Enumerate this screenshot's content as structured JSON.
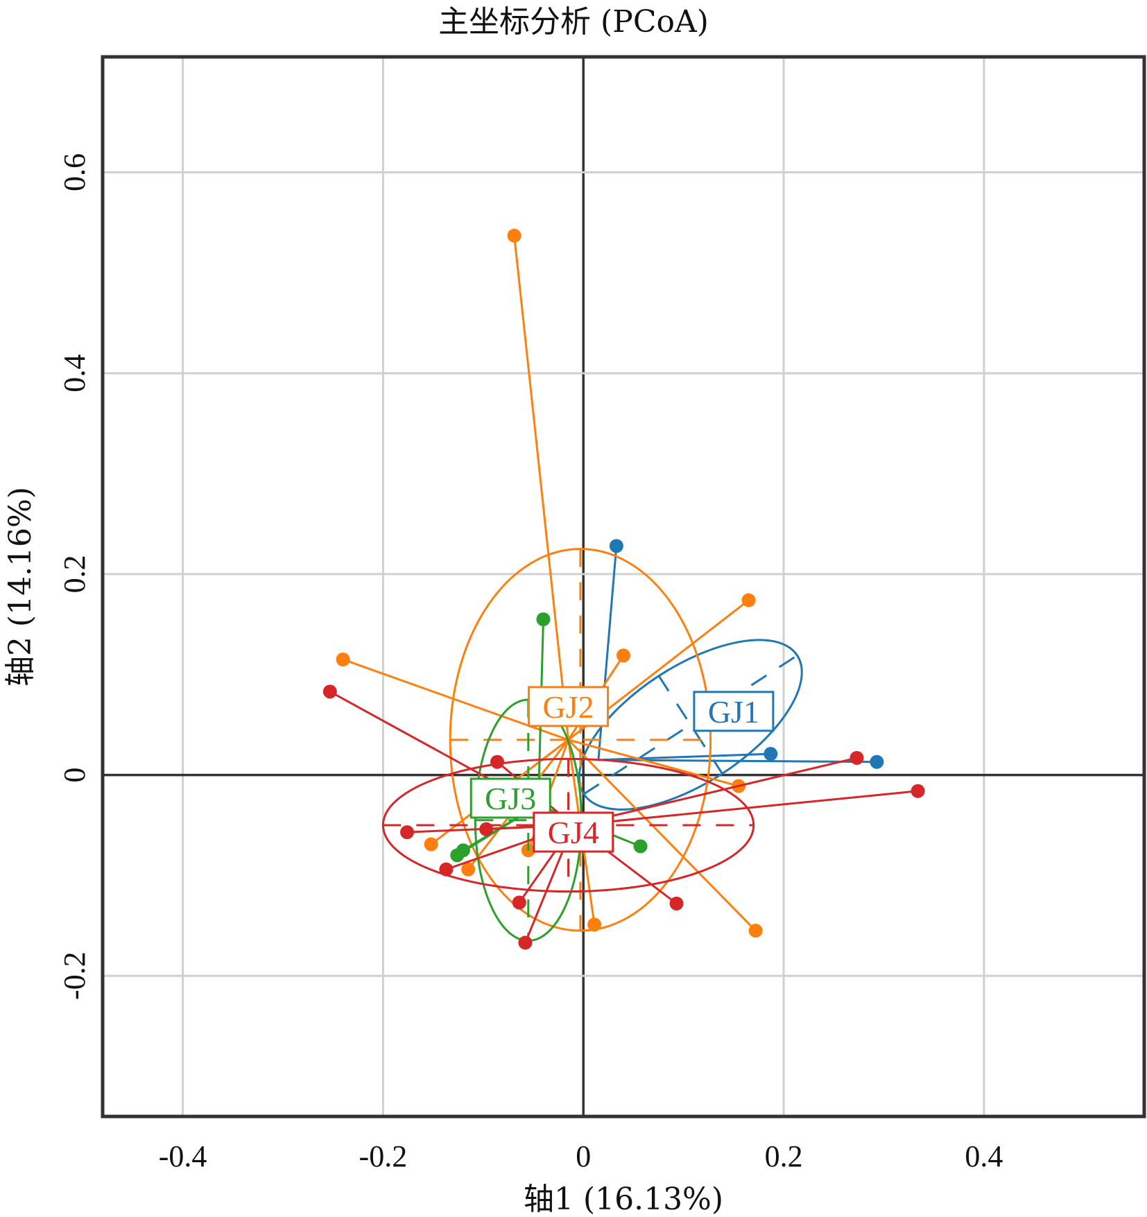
{
  "chart_data": {
    "type": "scatter",
    "title": "主坐标分析 (PCoA)",
    "xlabel": "轴1 (16.13%)",
    "ylabel": "轴2 (14.16%)",
    "xlim": [
      -0.48,
      0.56
    ],
    "ylim": [
      -0.34,
      0.715
    ],
    "grid": true,
    "legend": "none",
    "x_ticks": [
      -0.4,
      -0.2,
      0,
      0.2,
      0.4
    ],
    "x_tick_labels": [
      "-0.4",
      "-0.2",
      "0",
      "0.2",
      "0.4"
    ],
    "y_ticks": [
      -0.2,
      0,
      0.2,
      0.4,
      0.6
    ],
    "y_tick_labels": [
      "-0.2",
      "0",
      "0.2",
      "0.4",
      "0.6"
    ],
    "series": [
      {
        "name": "GJ1",
        "color": "#1f77b4",
        "centroid": [
          0.015,
          0.015
        ],
        "ellipse": {
          "center": [
            0.107,
            0.05
          ],
          "rx": 0.127,
          "ry": 0.058,
          "angle_deg": -33
        },
        "points": [
          [
            0.033,
            0.228
          ],
          [
            0.187,
            0.021
          ],
          [
            0.293,
            0.013
          ]
        ]
      },
      {
        "name": "GJ2",
        "color": "#ff7f0e",
        "centroid": [
          -0.015,
          0.035
        ],
        "ellipse": {
          "center": [
            -0.003,
            0.035
          ],
          "rx": 0.13,
          "ry": 0.19,
          "angle_deg": 0
        },
        "points": [
          [
            -0.069,
            0.537
          ],
          [
            0.165,
            0.174
          ],
          [
            0.04,
            0.119
          ],
          [
            -0.24,
            0.115
          ],
          [
            0.155,
            -0.011
          ],
          [
            -0.152,
            -0.069
          ],
          [
            -0.115,
            -0.094
          ],
          [
            -0.055,
            -0.075
          ],
          [
            0.011,
            -0.149
          ],
          [
            0.172,
            -0.155
          ]
        ]
      },
      {
        "name": "GJ3",
        "color": "#2ca02c",
        "centroid": [
          -0.045,
          -0.03
        ],
        "ellipse": {
          "center": [
            -0.055,
            -0.045
          ],
          "rx": 0.053,
          "ry": 0.12,
          "angle_deg": 0
        },
        "points": [
          [
            -0.04,
            0.155
          ],
          [
            0.057,
            -0.071
          ],
          [
            -0.126,
            -0.08
          ],
          [
            -0.12,
            -0.075
          ]
        ]
      },
      {
        "name": "GJ4",
        "color": "#d62728",
        "centroid": [
          -0.01,
          -0.05
        ],
        "ellipse": {
          "center": [
            -0.015,
            -0.05
          ],
          "rx": 0.185,
          "ry": 0.066,
          "angle_deg": 0
        },
        "points": [
          [
            -0.253,
            0.083
          ],
          [
            -0.086,
            0.013
          ],
          [
            0.273,
            0.017
          ],
          [
            0.334,
            -0.016
          ],
          [
            -0.176,
            -0.057
          ],
          [
            -0.097,
            -0.054
          ],
          [
            -0.137,
            -0.094
          ],
          [
            0.093,
            -0.128
          ],
          [
            -0.058,
            -0.167
          ],
          [
            -0.064,
            -0.127
          ]
        ]
      }
    ]
  }
}
